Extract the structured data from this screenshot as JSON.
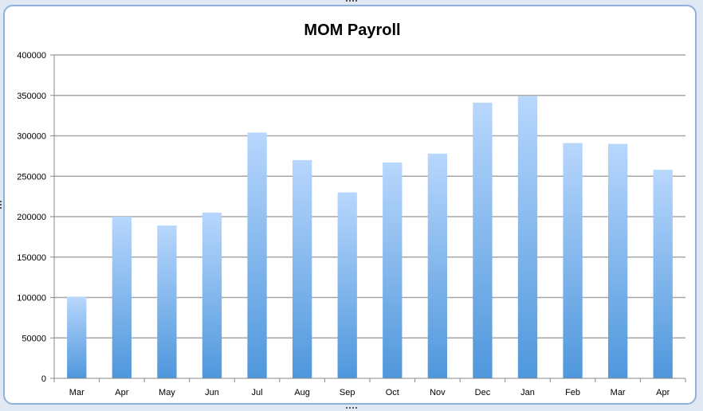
{
  "chart_data": {
    "type": "bar",
    "title": "MOM Payroll",
    "xlabel": "",
    "ylabel": "",
    "categories": [
      "Mar",
      "Apr",
      "May",
      "Jun",
      "Jul",
      "Aug",
      "Sep",
      "Oct",
      "Nov",
      "Dec",
      "Jan",
      "Feb",
      "Mar",
      "Apr"
    ],
    "values": [
      101000,
      200000,
      189000,
      205000,
      304000,
      270000,
      230000,
      267000,
      278000,
      341000,
      349000,
      291000,
      290000,
      258000
    ],
    "ylim": [
      0,
      400000
    ],
    "yticks": [
      "0",
      "50000",
      "100000",
      "150000",
      "200000",
      "250000",
      "300000",
      "350000",
      "400000"
    ],
    "grid": true,
    "legend": "none",
    "colors": {
      "bar_top": "#b8d7fd",
      "bar_bottom": "#4f97dc",
      "grid": "#a6a6a6",
      "frame": "#8fb0d8"
    }
  }
}
